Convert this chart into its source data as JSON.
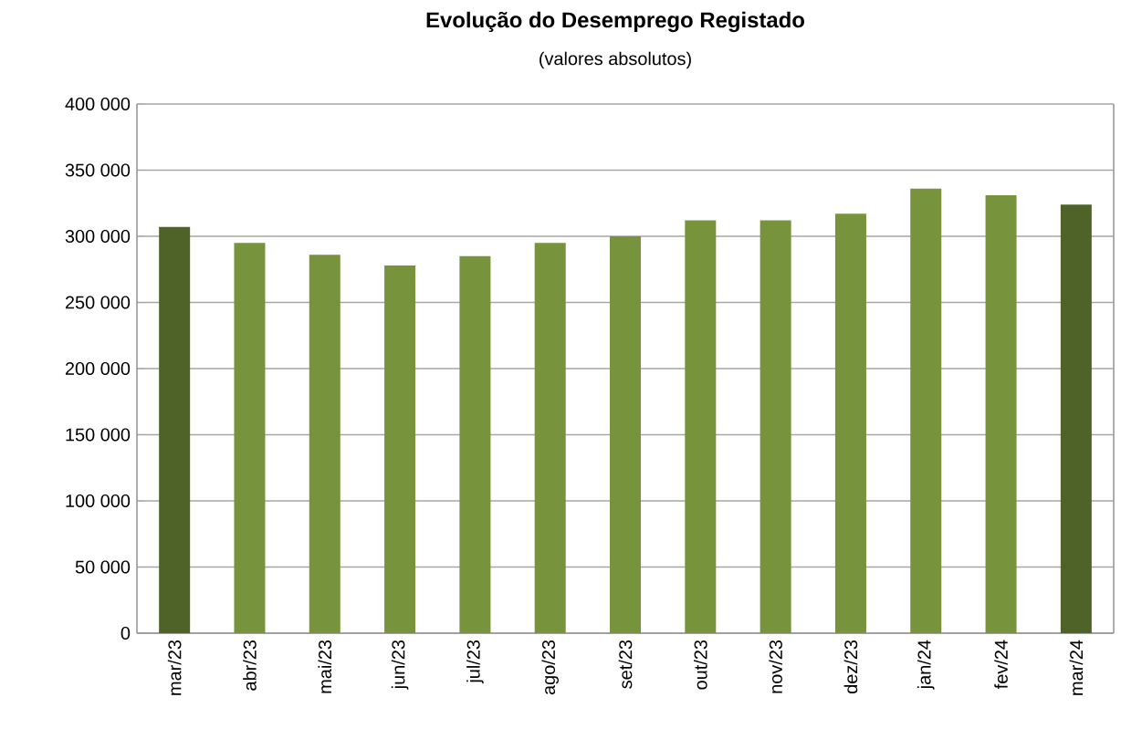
{
  "chart_data": {
    "type": "bar",
    "title": "Evolução do Desemprego Registado",
    "subtitle": "(valores absolutos)",
    "categories": [
      "mar/23",
      "abr/23",
      "mai/23",
      "jun/23",
      "jul/23",
      "ago/23",
      "set/23",
      "out/23",
      "nov/23",
      "dez/23",
      "jan/24",
      "fev/24",
      "mar/24"
    ],
    "values": [
      307000,
      295000,
      286000,
      278000,
      285000,
      295000,
      300000,
      312000,
      312000,
      317000,
      336000,
      331000,
      324000
    ],
    "colors": [
      "#4f6228",
      "#77933c",
      "#77933c",
      "#77933c",
      "#77933c",
      "#77933c",
      "#77933c",
      "#77933c",
      "#77933c",
      "#77933c",
      "#77933c",
      "#77933c",
      "#4f6228"
    ],
    "ylim": [
      0,
      400000
    ],
    "yticks": [
      {
        "value": 0,
        "label": "0"
      },
      {
        "value": 50000,
        "label": "50 000"
      },
      {
        "value": 100000,
        "label": "100 000"
      },
      {
        "value": 150000,
        "label": "150 000"
      },
      {
        "value": 200000,
        "label": "200 000"
      },
      {
        "value": 250000,
        "label": "250 000"
      },
      {
        "value": 300000,
        "label": "300 000"
      },
      {
        "value": 350000,
        "label": "350 000"
      },
      {
        "value": 400000,
        "label": "400 000"
      }
    ],
    "grid": "y"
  }
}
